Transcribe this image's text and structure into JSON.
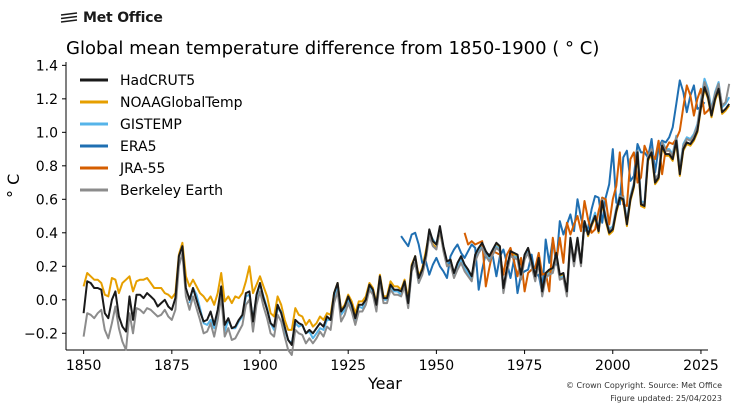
{
  "brand": {
    "name": "Met Office"
  },
  "footer": {
    "copyright": "© Crown Copyright. Source: Met Office",
    "updated": "Figure updated: 25/04/2023"
  },
  "chart_data": {
    "type": "line",
    "title": "Global mean temperature difference from 1850-1900 ( ° C)",
    "xlabel": "Year",
    "ylabel": "° C",
    "xlim": [
      1845,
      2027
    ],
    "ylim": [
      -0.3,
      1.42
    ],
    "xticks": [
      1850,
      1875,
      1900,
      1925,
      1950,
      1975,
      2000,
      2025
    ],
    "yticks": [
      -0.2,
      0.0,
      0.2,
      0.4,
      0.6,
      0.8,
      1.0,
      1.2,
      1.4
    ],
    "ytick_labels": [
      "−0.2",
      "0.0",
      "0.2",
      "0.4",
      "0.6",
      "0.8",
      "1.0",
      "1.2",
      "1.4"
    ],
    "legend_position": "top-left",
    "grid": false,
    "series": [
      {
        "name": "HadCRUT5",
        "color": "#1a1a1a",
        "start": 1850,
        "values": [
          -0.08,
          0.11,
          0.1,
          0.07,
          0.07,
          0.06,
          -0.08,
          -0.11,
          0.0,
          0.05,
          -0.1,
          -0.16,
          -0.19,
          0.02,
          -0.12,
          0.03,
          0.03,
          0.01,
          0.04,
          0.02,
          0.0,
          -0.04,
          -0.02,
          0.0,
          -0.04,
          -0.06,
          0.01,
          0.26,
          0.32,
          0.07,
          0.0,
          0.07,
          0.0,
          -0.07,
          -0.13,
          -0.12,
          -0.07,
          -0.15,
          -0.06,
          0.08,
          -0.15,
          -0.11,
          -0.17,
          -0.16,
          -0.12,
          -0.09,
          0.04,
          0.05,
          -0.13,
          0.03,
          0.1,
          0.01,
          -0.06,
          -0.14,
          -0.16,
          -0.03,
          -0.08,
          -0.16,
          -0.24,
          -0.27,
          -0.12,
          -0.14,
          -0.15,
          -0.2,
          -0.18,
          -0.2,
          -0.17,
          -0.14,
          -0.16,
          -0.1,
          -0.12,
          0.04,
          0.1,
          -0.07,
          -0.04,
          0.02,
          -0.03,
          -0.11,
          -0.03,
          -0.03,
          0.0,
          0.09,
          0.06,
          -0.03,
          0.14,
          0.01,
          0.01,
          0.09,
          0.06,
          0.06,
          0.05,
          0.11,
          -0.02,
          0.2,
          0.26,
          0.13,
          0.18,
          0.27,
          0.42,
          0.35,
          0.33,
          0.44,
          0.32,
          0.23,
          0.24,
          0.16,
          0.22,
          0.26,
          0.21,
          0.18,
          0.14,
          0.27,
          0.31,
          0.34,
          0.29,
          0.26,
          0.3,
          0.34,
          0.32,
          0.07,
          0.19,
          0.29,
          0.28,
          0.27,
          0.15,
          0.27,
          0.31,
          0.23,
          0.14,
          0.25,
          0.05,
          0.16,
          0.18,
          0.19,
          0.28,
          0.15,
          0.16,
          0.05,
          0.37,
          0.23,
          0.37,
          0.22,
          0.47,
          0.39,
          0.45,
          0.5,
          0.41,
          0.59,
          0.48,
          0.4,
          0.42,
          0.53,
          0.61,
          0.6,
          0.45,
          0.6,
          0.68,
          0.88,
          0.57,
          0.56,
          0.84,
          0.88,
          0.7,
          0.73,
          0.92,
          0.87,
          0.87,
          0.84,
          0.95,
          0.75,
          0.9,
          0.94,
          0.93,
          0.96,
          1.01,
          1.15,
          1.27,
          1.21,
          1.1,
          1.2,
          1.26,
          1.12,
          1.14,
          1.17
        ]
      },
      {
        "name": "NOAAGlobalTemp",
        "color": "#e69f00",
        "start": 1850,
        "values": [
          0.08,
          0.16,
          0.14,
          0.12,
          0.12,
          0.1,
          0.03,
          0.02,
          0.13,
          0.12,
          0.04,
          0.1,
          0.12,
          0.14,
          0.05,
          0.11,
          0.12,
          0.12,
          0.13,
          0.1,
          0.07,
          0.07,
          0.07,
          0.04,
          0.03,
          0.01,
          0.04,
          0.27,
          0.34,
          0.14,
          0.08,
          0.12,
          0.08,
          0.04,
          0.02,
          -0.01,
          0.02,
          -0.03,
          0.04,
          0.16,
          -0.01,
          0.02,
          -0.02,
          0.02,
          0.01,
          0.04,
          0.11,
          0.2,
          0.04,
          0.09,
          0.14,
          0.08,
          0.02,
          -0.08,
          -0.1,
          0.02,
          -0.03,
          -0.12,
          -0.18,
          -0.18,
          -0.05,
          -0.09,
          -0.1,
          -0.15,
          -0.12,
          -0.16,
          -0.14,
          -0.1,
          -0.12,
          -0.08,
          -0.09,
          0.04,
          0.1,
          -0.06,
          -0.03,
          0.03,
          -0.01,
          -0.08,
          -0.01,
          -0.01,
          0.02,
          0.1,
          0.07,
          -0.02,
          0.15,
          0.02,
          0.02,
          0.11,
          0.08,
          0.08,
          0.06,
          0.12,
          0.0,
          0.21,
          0.26,
          0.14,
          0.19,
          0.29,
          0.4,
          0.33,
          0.31,
          0.41,
          0.3,
          0.21,
          0.24,
          0.15,
          0.2,
          0.24,
          0.2,
          0.17,
          0.13,
          0.26,
          0.3,
          0.33,
          0.29,
          0.25,
          0.29,
          0.33,
          0.31,
          0.06,
          0.18,
          0.28,
          0.27,
          0.26,
          0.14,
          0.26,
          0.3,
          0.22,
          0.13,
          0.24,
          0.04,
          0.15,
          0.17,
          0.18,
          0.27,
          0.14,
          0.15,
          0.04,
          0.36,
          0.22,
          0.36,
          0.21,
          0.46,
          0.38,
          0.44,
          0.49,
          0.4,
          0.58,
          0.47,
          0.39,
          0.41,
          0.52,
          0.6,
          0.59,
          0.44,
          0.59,
          0.67,
          0.86,
          0.56,
          0.55,
          0.83,
          0.87,
          0.69,
          0.72,
          0.91,
          0.86,
          0.86,
          0.83,
          0.94,
          0.74,
          0.89,
          0.93,
          0.92,
          0.95,
          1.0,
          1.14,
          1.26,
          1.2,
          1.09,
          1.19,
          1.25,
          1.11,
          1.13,
          1.16
        ]
      },
      {
        "name": "GISTEMP",
        "color": "#56b4e9",
        "start": 1880,
        "values": [
          -0.02,
          0.07,
          0.03,
          -0.05,
          -0.14,
          -0.15,
          -0.12,
          -0.17,
          -0.07,
          0.05,
          -0.19,
          -0.12,
          -0.17,
          -0.17,
          -0.13,
          -0.1,
          0.02,
          0.03,
          -0.12,
          0.02,
          0.09,
          0.02,
          -0.05,
          -0.14,
          -0.18,
          -0.05,
          -0.07,
          -0.18,
          -0.24,
          -0.26,
          -0.14,
          -0.16,
          -0.15,
          -0.2,
          -0.19,
          -0.23,
          -0.2,
          -0.17,
          -0.18,
          -0.12,
          -0.12,
          0.02,
          0.08,
          -0.09,
          -0.06,
          0.0,
          -0.04,
          -0.12,
          -0.04,
          -0.05,
          0.0,
          0.08,
          0.05,
          -0.04,
          0.13,
          0.0,
          0.0,
          0.08,
          0.05,
          0.05,
          0.03,
          0.09,
          -0.04,
          0.18,
          0.22,
          0.1,
          0.16,
          0.25,
          0.4,
          0.36,
          0.33,
          0.43,
          0.31,
          0.22,
          0.22,
          0.14,
          0.2,
          0.24,
          0.19,
          0.16,
          0.12,
          0.24,
          0.29,
          0.32,
          0.27,
          0.24,
          0.28,
          0.32,
          0.3,
          0.05,
          0.17,
          0.27,
          0.26,
          0.25,
          0.13,
          0.25,
          0.29,
          0.21,
          0.12,
          0.23,
          0.03,
          0.14,
          0.16,
          0.17,
          0.26,
          0.13,
          0.14,
          0.03,
          0.35,
          0.21,
          0.35,
          0.21,
          0.47,
          0.4,
          0.46,
          0.52,
          0.42,
          0.61,
          0.5,
          0.42,
          0.44,
          0.55,
          0.63,
          0.62,
          0.47,
          0.62,
          0.7,
          0.91,
          0.59,
          0.58,
          0.87,
          0.91,
          0.72,
          0.75,
          0.95,
          0.9,
          0.9,
          0.87,
          0.98,
          0.78,
          0.93,
          0.97,
          0.96,
          0.99,
          1.05,
          1.19,
          1.32,
          1.26,
          1.14,
          1.24,
          1.3,
          1.15,
          1.17,
          1.21
        ]
      },
      {
        "name": "ERA5",
        "color": "#1f6fb2",
        "start": 1940,
        "values": [
          0.38,
          0.35,
          0.32,
          0.39,
          0.4,
          0.33,
          0.22,
          0.23,
          0.15,
          0.21,
          0.25,
          0.2,
          0.17,
          0.13,
          0.26,
          0.3,
          0.33,
          0.28,
          0.25,
          0.29,
          0.33,
          0.31,
          0.06,
          0.18,
          0.28,
          0.27,
          0.26,
          0.14,
          0.26,
          0.3,
          0.22,
          0.13,
          0.24,
          0.04,
          0.15,
          0.17,
          0.18,
          0.27,
          0.14,
          0.15,
          0.04,
          0.36,
          0.22,
          0.36,
          0.21,
          0.47,
          0.39,
          0.45,
          0.51,
          0.41,
          0.6,
          0.49,
          0.41,
          0.43,
          0.54,
          0.62,
          0.61,
          0.46,
          0.61,
          0.69,
          0.9,
          0.58,
          0.57,
          0.85,
          0.89,
          0.71,
          0.74,
          0.93,
          0.88,
          0.88,
          0.85,
          0.96,
          0.76,
          0.91,
          0.95,
          0.94,
          0.97,
          1.03,
          1.17,
          1.31,
          1.24,
          1.12,
          1.22,
          1.28,
          1.14,
          1.15,
          1.18
        ]
      },
      {
        "name": "JRA-55",
        "color": "#d55e00",
        "start": 1958,
        "values": [
          0.4,
          0.33,
          0.35,
          0.33,
          0.34,
          0.35,
          0.08,
          0.19,
          0.29,
          0.28,
          0.27,
          0.15,
          0.27,
          0.31,
          0.23,
          0.14,
          0.25,
          0.05,
          0.16,
          0.18,
          0.19,
          0.28,
          0.15,
          0.16,
          0.05,
          0.37,
          0.23,
          0.37,
          0.22,
          0.46,
          0.39,
          0.45,
          0.5,
          0.41,
          0.59,
          0.48,
          0.4,
          0.42,
          0.53,
          0.61,
          0.6,
          0.45,
          0.6,
          0.68,
          0.88,
          0.57,
          0.56,
          0.84,
          0.88,
          0.7,
          0.73,
          0.92,
          0.87,
          0.87,
          0.84,
          0.95,
          0.75,
          0.9,
          0.94,
          0.93,
          0.96,
          1.01,
          1.15,
          1.28,
          1.22,
          1.1,
          1.2,
          1.26,
          1.11,
          1.13,
          1.16
        ]
      },
      {
        "name": "Berkeley Earth",
        "color": "#8c8c8c",
        "start": 1850,
        "values": [
          -0.22,
          -0.08,
          -0.09,
          -0.11,
          -0.08,
          -0.06,
          -0.18,
          -0.23,
          -0.14,
          -0.04,
          -0.17,
          -0.25,
          -0.3,
          -0.08,
          -0.2,
          -0.05,
          -0.06,
          -0.08,
          -0.05,
          -0.06,
          -0.08,
          -0.1,
          -0.09,
          -0.06,
          -0.1,
          -0.12,
          -0.06,
          0.2,
          0.28,
          0.02,
          -0.06,
          0.02,
          -0.05,
          -0.12,
          -0.2,
          -0.19,
          -0.14,
          -0.22,
          -0.12,
          0.02,
          -0.22,
          -0.17,
          -0.24,
          -0.23,
          -0.19,
          -0.15,
          -0.03,
          0.0,
          -0.19,
          -0.03,
          0.05,
          -0.04,
          -0.11,
          -0.2,
          -0.22,
          -0.09,
          -0.13,
          -0.22,
          -0.3,
          -0.33,
          -0.18,
          -0.2,
          -0.21,
          -0.26,
          -0.23,
          -0.26,
          -0.23,
          -0.19,
          -0.22,
          -0.16,
          -0.18,
          -0.02,
          0.05,
          -0.13,
          -0.09,
          -0.02,
          -0.07,
          -0.15,
          -0.07,
          -0.07,
          -0.03,
          0.06,
          0.03,
          -0.07,
          0.11,
          -0.02,
          -0.02,
          0.06,
          0.03,
          0.03,
          0.02,
          0.08,
          -0.05,
          0.17,
          0.22,
          0.1,
          0.15,
          0.24,
          0.38,
          0.32,
          0.3,
          0.42,
          0.29,
          0.2,
          0.21,
          0.13,
          0.18,
          0.22,
          0.17,
          0.14,
          0.11,
          0.23,
          0.28,
          0.31,
          0.26,
          0.23,
          0.27,
          0.31,
          0.29,
          0.04,
          0.16,
          0.26,
          0.25,
          0.24,
          0.12,
          0.24,
          0.28,
          0.2,
          0.11,
          0.22,
          0.02,
          0.13,
          0.15,
          0.16,
          0.25,
          0.12,
          0.13,
          0.02,
          0.34,
          0.2,
          0.34,
          0.2,
          0.46,
          0.39,
          0.45,
          0.5,
          0.41,
          0.6,
          0.49,
          0.41,
          0.43,
          0.54,
          0.62,
          0.61,
          0.46,
          0.61,
          0.69,
          0.89,
          0.58,
          0.57,
          0.86,
          0.9,
          0.72,
          0.75,
          0.94,
          0.89,
          0.89,
          0.86,
          0.97,
          0.77,
          0.92,
          0.96,
          0.95,
          0.98,
          1.04,
          1.18,
          1.3,
          1.24,
          1.13,
          1.23,
          1.29,
          1.16,
          1.18,
          1.29
        ]
      }
    ]
  }
}
